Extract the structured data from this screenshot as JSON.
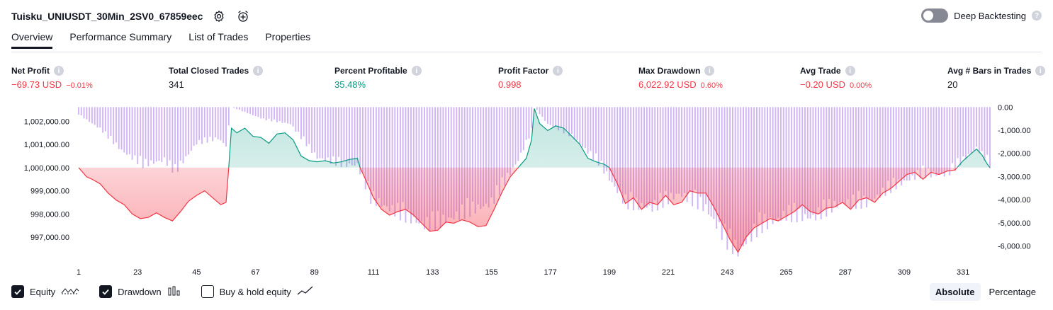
{
  "header": {
    "title": "Tuisku_UNIUSDT_30Min_2SV0_67859eec",
    "settings_icon": "gear-icon",
    "alert_icon": "alarm-clock-plus-icon"
  },
  "deep_backtesting": {
    "label": "Deep Backtesting",
    "enabled": false
  },
  "tabs": [
    {
      "label": "Overview",
      "active": true
    },
    {
      "label": "Performance Summary",
      "active": false
    },
    {
      "label": "List of Trades",
      "active": false
    },
    {
      "label": "Properties",
      "active": false
    }
  ],
  "metrics": [
    {
      "label": "Net Profit",
      "value": "−69.73 USD",
      "pct": "−0.01%",
      "tone": "neg"
    },
    {
      "label": "Total Closed Trades",
      "value": "341",
      "pct": "",
      "tone": "neu"
    },
    {
      "label": "Percent Profitable",
      "value": "35.48%",
      "pct": "",
      "tone": "pos"
    },
    {
      "label": "Profit Factor",
      "value": "0.998",
      "pct": "",
      "tone": "neg"
    },
    {
      "label": "Max Drawdown",
      "value": "6,022.92 USD",
      "pct": "0.60%",
      "tone": "neg"
    },
    {
      "label": "Avg Trade",
      "value": "−0.20 USD",
      "pct": "0.00%",
      "tone": "neg"
    },
    {
      "label": "Avg # Bars in Trades",
      "value": "20",
      "pct": "",
      "tone": "neu"
    }
  ],
  "colors": {
    "profit": "#089981",
    "loss": "#f23645",
    "drawdown": "#c9a7f2",
    "text": "#131722",
    "axis_text": "#131722"
  },
  "chart_data": {
    "type": "line",
    "title": "",
    "xlabel": "",
    "ylabel": "",
    "x_ticks": [
      1,
      23,
      45,
      67,
      89,
      111,
      133,
      155,
      177,
      199,
      221,
      243,
      265,
      287,
      309,
      331
    ],
    "xlim": [
      1,
      341
    ],
    "y_left_ticks": [
      {
        "value": 1002000,
        "label": "1,002,000.00"
      },
      {
        "value": 1001000,
        "label": "1,001,000.00"
      },
      {
        "value": 1000000,
        "label": "1,000,000.00"
      },
      {
        "value": 999000,
        "label": "999,000.00"
      },
      {
        "value": 998000,
        "label": "998,000.00"
      },
      {
        "value": 997000,
        "label": "997,000.00"
      }
    ],
    "ylim_left": [
      996300,
      1002650
    ],
    "y_right_ticks": [
      {
        "value": 0,
        "label": "0.00"
      },
      {
        "value": -1000,
        "label": "-1,000.00"
      },
      {
        "value": -2000,
        "label": "-2,000.00"
      },
      {
        "value": -3000,
        "label": "-3,000.00"
      },
      {
        "value": -4000,
        "label": "-4,000.00"
      },
      {
        "value": -5000,
        "label": "-5,000.00"
      },
      {
        "value": -6000,
        "label": "-6,000.00"
      }
    ],
    "ylim_right": [
      -6320,
      40
    ],
    "baseline": 1000000,
    "series": [
      {
        "name": "Equity",
        "kind": "line",
        "points": [
          [
            1,
            1000000
          ],
          [
            4,
            999600
          ],
          [
            6,
            999500
          ],
          [
            9,
            999300
          ],
          [
            12,
            998900
          ],
          [
            15,
            998600
          ],
          [
            18,
            998400
          ],
          [
            21,
            998000
          ],
          [
            24,
            997800
          ],
          [
            27,
            997850
          ],
          [
            30,
            998050
          ],
          [
            33,
            997850
          ],
          [
            36,
            997700
          ],
          [
            39,
            998100
          ],
          [
            42,
            998550
          ],
          [
            45,
            998800
          ],
          [
            48,
            999000
          ],
          [
            51,
            998700
          ],
          [
            54,
            998400
          ],
          [
            56,
            998500
          ],
          [
            57,
            1000000
          ],
          [
            58,
            1001700
          ],
          [
            60,
            1001500
          ],
          [
            63,
            1001700
          ],
          [
            66,
            1001350
          ],
          [
            69,
            1001300
          ],
          [
            72,
            1001050
          ],
          [
            75,
            1001450
          ],
          [
            78,
            1001500
          ],
          [
            81,
            1001200
          ],
          [
            84,
            1000500
          ],
          [
            87,
            1000300
          ],
          [
            90,
            1000250
          ],
          [
            93,
            1000300
          ],
          [
            96,
            1000200
          ],
          [
            99,
            1000250
          ],
          [
            102,
            1000350
          ],
          [
            105,
            1000400
          ],
          [
            106,
            1000000
          ],
          [
            108,
            999500
          ],
          [
            111,
            998700
          ],
          [
            114,
            998200
          ],
          [
            117,
            997950
          ],
          [
            120,
            998100
          ],
          [
            123,
            998200
          ],
          [
            126,
            997950
          ],
          [
            129,
            997600
          ],
          [
            132,
            997250
          ],
          [
            135,
            997300
          ],
          [
            138,
            997650
          ],
          [
            141,
            997600
          ],
          [
            144,
            997750
          ],
          [
            147,
            997650
          ],
          [
            150,
            997450
          ],
          [
            153,
            997500
          ],
          [
            156,
            998200
          ],
          [
            159,
            998950
          ],
          [
            162,
            999600
          ],
          [
            165,
            1000000
          ],
          [
            168,
            1000400
          ],
          [
            170,
            1001200
          ],
          [
            171,
            1002550
          ],
          [
            173,
            1001900
          ],
          [
            176,
            1001600
          ],
          [
            179,
            1001800
          ],
          [
            182,
            1001700
          ],
          [
            185,
            1001350
          ],
          [
            188,
            1001000
          ],
          [
            191,
            1000400
          ],
          [
            194,
            1000250
          ],
          [
            197,
            1000150
          ],
          [
            199,
            1000000
          ],
          [
            202,
            999300
          ],
          [
            205,
            998450
          ],
          [
            208,
            998700
          ],
          [
            211,
            998200
          ],
          [
            214,
            998500
          ],
          [
            217,
            998400
          ],
          [
            220,
            998800
          ],
          [
            223,
            998400
          ],
          [
            226,
            998500
          ],
          [
            229,
            999000
          ],
          [
            232,
            998900
          ],
          [
            235,
            998900
          ],
          [
            238,
            998300
          ],
          [
            241,
            997600
          ],
          [
            244,
            996900
          ],
          [
            247,
            996350
          ],
          [
            250,
            997000
          ],
          [
            253,
            997400
          ],
          [
            256,
            997600
          ],
          [
            259,
            997800
          ],
          [
            262,
            997700
          ],
          [
            265,
            997900
          ],
          [
            268,
            998100
          ],
          [
            271,
            998400
          ],
          [
            274,
            998100
          ],
          [
            277,
            998000
          ],
          [
            280,
            998250
          ],
          [
            283,
            998300
          ],
          [
            286,
            998500
          ],
          [
            289,
            998200
          ],
          [
            292,
            998600
          ],
          [
            295,
            998700
          ],
          [
            298,
            998500
          ],
          [
            301,
            998900
          ],
          [
            304,
            999100
          ],
          [
            307,
            999400
          ],
          [
            310,
            999700
          ],
          [
            313,
            999800
          ],
          [
            316,
            999500
          ],
          [
            319,
            999800
          ],
          [
            322,
            999700
          ],
          [
            325,
            999850
          ],
          [
            328,
            999900
          ],
          [
            331,
            1000300
          ],
          [
            334,
            1000600
          ],
          [
            336,
            1000800
          ],
          [
            338,
            1000550
          ],
          [
            340,
            1000150
          ],
          [
            341,
            1000000
          ]
        ]
      },
      {
        "name": "Drawdown",
        "kind": "bars",
        "points": [
          [
            1,
            -300
          ],
          [
            9,
            -900
          ],
          [
            17,
            -1800
          ],
          [
            25,
            -2400
          ],
          [
            33,
            -2200
          ],
          [
            37,
            -2700
          ],
          [
            45,
            -1500
          ],
          [
            53,
            -1300
          ],
          [
            56,
            -1600
          ],
          [
            58,
            0
          ],
          [
            70,
            -500
          ],
          [
            80,
            -700
          ],
          [
            90,
            -2100
          ],
          [
            100,
            -2400
          ],
          [
            105,
            -2400
          ],
          [
            110,
            -3800
          ],
          [
            120,
            -4400
          ],
          [
            130,
            -4900
          ],
          [
            133,
            -4900
          ],
          [
            145,
            -4400
          ],
          [
            155,
            -4000
          ],
          [
            165,
            -2200
          ],
          [
            170,
            -1000
          ],
          [
            171,
            0
          ],
          [
            176,
            -700
          ],
          [
            185,
            -1200
          ],
          [
            195,
            -2300
          ],
          [
            205,
            -4000
          ],
          [
            215,
            -4200
          ],
          [
            225,
            -3600
          ],
          [
            235,
            -4200
          ],
          [
            243,
            -5600
          ],
          [
            247,
            -6000
          ],
          [
            255,
            -5000
          ],
          [
            265,
            -4500
          ],
          [
            275,
            -4600
          ],
          [
            285,
            -4000
          ],
          [
            295,
            -4000
          ],
          [
            305,
            -3300
          ],
          [
            315,
            -2800
          ],
          [
            325,
            -2800
          ],
          [
            331,
            -2200
          ],
          [
            336,
            -1700
          ],
          [
            341,
            -2400
          ]
        ]
      }
    ]
  },
  "legend": {
    "items": [
      {
        "label": "Equity",
        "checked": true,
        "icon": "equity-line-icon"
      },
      {
        "label": "Drawdown",
        "checked": true,
        "icon": "bar-chart-icon"
      },
      {
        "label": "Buy & hold equity",
        "checked": false,
        "icon": "trend-line-icon"
      }
    ]
  },
  "modes": [
    {
      "label": "Absolute",
      "active": true
    },
    {
      "label": "Percentage",
      "active": false
    }
  ]
}
